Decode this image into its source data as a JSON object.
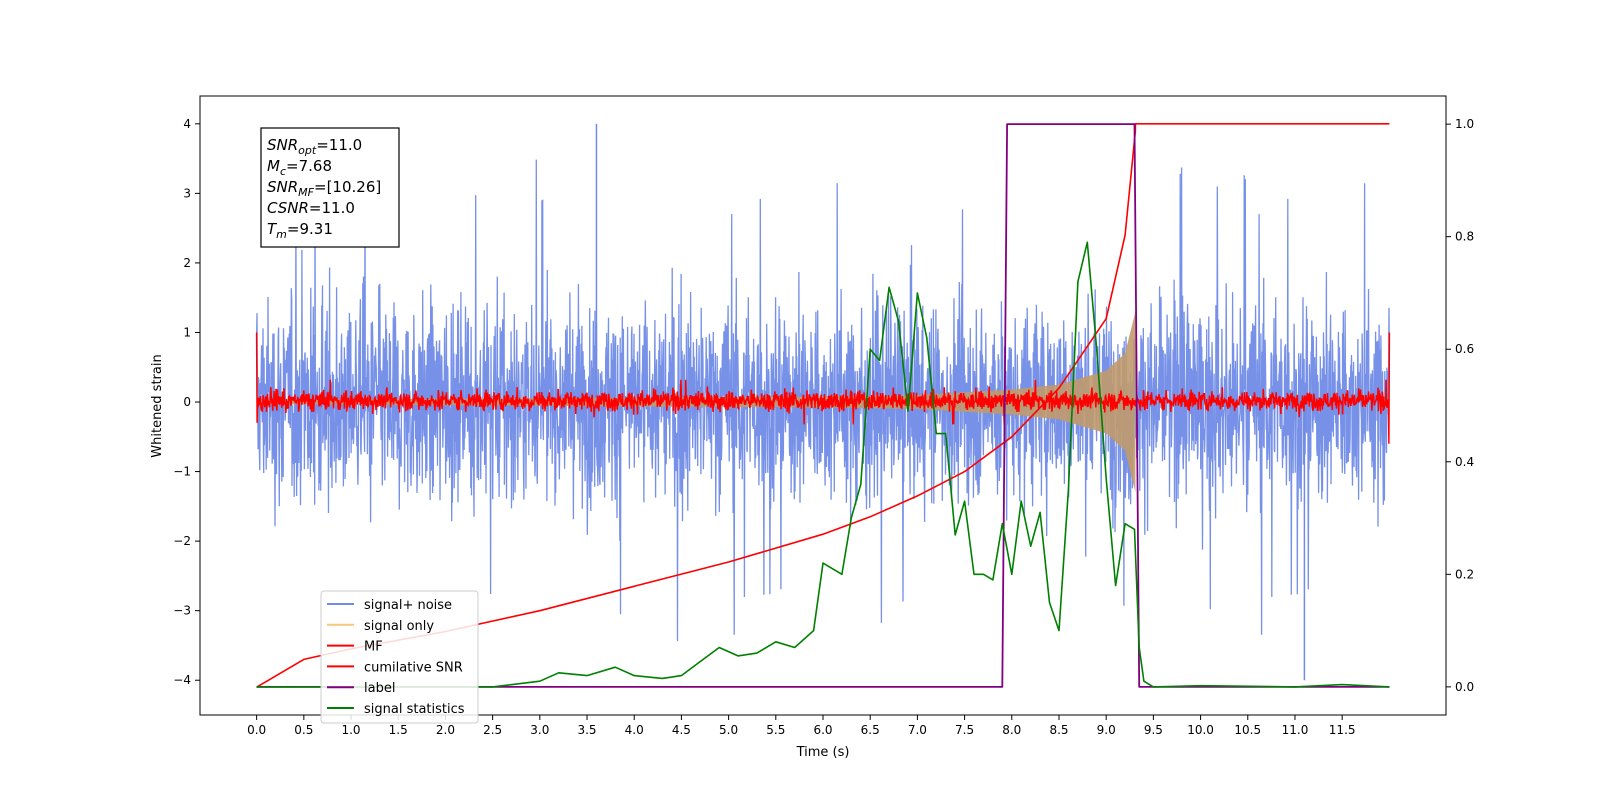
{
  "chart_data": {
    "type": "line",
    "title": "",
    "xlabel": "Time (s)",
    "ylabel": "Whitened strain",
    "xlim": [
      -0.6,
      12.6
    ],
    "ylim": [
      -4.5,
      4.4
    ],
    "y2lim": [
      -0.05,
      1.05
    ],
    "x_ticks": [
      0.0,
      0.5,
      1.0,
      1.5,
      2.0,
      2.5,
      3.0,
      3.5,
      4.0,
      4.5,
      5.0,
      5.5,
      6.0,
      6.5,
      7.0,
      7.5,
      8.0,
      8.5,
      9.0,
      9.5,
      10.0,
      10.5,
      11.0,
      11.5
    ],
    "x_tick_labels": [
      "0.0",
      "0.5",
      "1.0",
      "1.5",
      "2.0",
      "2.5",
      "3.0",
      "3.5",
      "4.0",
      "4.5",
      "5.0",
      "5.5",
      "6.0",
      "6.5",
      "7.0",
      "7.5",
      "8.0",
      "8.5",
      "9.0",
      "9.5",
      "10.0",
      "10.5",
      "11.0",
      "11.5"
    ],
    "y_ticks": [
      -4,
      -3,
      -2,
      -1,
      0,
      1,
      2,
      3,
      4
    ],
    "y_tick_labels": [
      "−4",
      "−3",
      "−2",
      "−1",
      "0",
      "1",
      "2",
      "3",
      "4"
    ],
    "y2_ticks": [
      0.0,
      0.2,
      0.4,
      0.6,
      0.8,
      1.0
    ],
    "y2_tick_labels": [
      "0.0",
      "0.2",
      "0.4",
      "0.6",
      "0.8",
      "1.0"
    ],
    "grid": false,
    "legend_position": "lower-left",
    "colors": {
      "noise": "#6f8be6",
      "signal": "#f5c87a",
      "signal_fill": "#c19a6b",
      "mf": "#ff0000",
      "csnr": "#ff0000",
      "label": "#800080",
      "stats": "#008000"
    },
    "series": [
      {
        "name": "signal+ noise",
        "key": "noise",
        "axis": "left",
        "amplitude": 1.6,
        "peak_extremes": [
          4.0,
          -4.0
        ]
      },
      {
        "name": "signal only",
        "key": "signal",
        "axis": "left",
        "envelope": [
          [
            0,
            0.03
          ],
          [
            6,
            0.08
          ],
          [
            7,
            0.1
          ],
          [
            8,
            0.18
          ],
          [
            8.5,
            0.25
          ],
          [
            9,
            0.45
          ],
          [
            9.2,
            0.7
          ],
          [
            9.31,
            1.3
          ]
        ]
      },
      {
        "name": "MF",
        "key": "mf",
        "axis": "left",
        "amplitude": 0.3,
        "edge_values": [
          1.0,
          -0.6
        ]
      },
      {
        "name": "cumilative SNR",
        "key": "csnr",
        "axis": "left",
        "points": [
          [
            0.0,
            -4.1
          ],
          [
            0.5,
            -3.7
          ],
          [
            1,
            -3.55
          ],
          [
            2,
            -3.3
          ],
          [
            3,
            -3.0
          ],
          [
            4,
            -2.65
          ],
          [
            5,
            -2.3
          ],
          [
            6,
            -1.9
          ],
          [
            6.5,
            -1.65
          ],
          [
            7,
            -1.35
          ],
          [
            7.5,
            -1.0
          ],
          [
            8,
            -0.5
          ],
          [
            8.5,
            0.2
          ],
          [
            9,
            1.2
          ],
          [
            9.2,
            2.4
          ],
          [
            9.31,
            3.9
          ],
          [
            9.31,
            4.0
          ],
          [
            12.0,
            4.0
          ]
        ]
      },
      {
        "name": "label",
        "key": "label",
        "axis": "right",
        "points": [
          [
            0.0,
            0.0
          ],
          [
            7.9,
            0.0
          ],
          [
            7.95,
            1.0
          ],
          [
            9.3,
            1.0
          ],
          [
            9.35,
            0.0
          ],
          [
            12.0,
            0.0
          ]
        ]
      },
      {
        "name": "signal statistics",
        "key": "stats",
        "axis": "right",
        "points": [
          [
            0.0,
            0.0
          ],
          [
            1.0,
            0.0
          ],
          [
            2.5,
            0.0
          ],
          [
            3.0,
            0.01
          ],
          [
            3.2,
            0.025
          ],
          [
            3.5,
            0.02
          ],
          [
            3.8,
            0.035
          ],
          [
            4.0,
            0.02
          ],
          [
            4.3,
            0.015
          ],
          [
            4.5,
            0.02
          ],
          [
            4.7,
            0.045
          ],
          [
            4.9,
            0.07
          ],
          [
            5.1,
            0.055
          ],
          [
            5.3,
            0.06
          ],
          [
            5.5,
            0.08
          ],
          [
            5.7,
            0.07
          ],
          [
            5.9,
            0.1
          ],
          [
            6.0,
            0.22
          ],
          [
            6.2,
            0.2
          ],
          [
            6.3,
            0.3
          ],
          [
            6.4,
            0.36
          ],
          [
            6.5,
            0.6
          ],
          [
            6.6,
            0.58
          ],
          [
            6.7,
            0.71
          ],
          [
            6.8,
            0.65
          ],
          [
            6.9,
            0.49
          ],
          [
            7.0,
            0.7
          ],
          [
            7.1,
            0.62
          ],
          [
            7.2,
            0.45
          ],
          [
            7.3,
            0.45
          ],
          [
            7.4,
            0.27
          ],
          [
            7.5,
            0.33
          ],
          [
            7.6,
            0.2
          ],
          [
            7.7,
            0.2
          ],
          [
            7.8,
            0.19
          ],
          [
            7.9,
            0.29
          ],
          [
            8.0,
            0.2
          ],
          [
            8.1,
            0.33
          ],
          [
            8.2,
            0.25
          ],
          [
            8.3,
            0.31
          ],
          [
            8.4,
            0.15
          ],
          [
            8.5,
            0.1
          ],
          [
            8.6,
            0.35
          ],
          [
            8.7,
            0.72
          ],
          [
            8.8,
            0.79
          ],
          [
            8.9,
            0.6
          ],
          [
            9.0,
            0.37
          ],
          [
            9.1,
            0.18
          ],
          [
            9.2,
            0.29
          ],
          [
            9.3,
            0.28
          ],
          [
            9.35,
            0.07
          ],
          [
            9.4,
            0.01
          ],
          [
            9.5,
            0.0
          ],
          [
            10.0,
            0.002
          ],
          [
            11.0,
            0.0
          ],
          [
            11.5,
            0.004
          ],
          [
            12.0,
            0.0
          ]
        ]
      }
    ],
    "x_extent": [
      0.0,
      12.0
    ],
    "annotation": {
      "lines": [
        {
          "sym": "SNR",
          "sub": "opt",
          "val": "=11.0"
        },
        {
          "sym": "M",
          "sub": "c",
          "val": "=7.68"
        },
        {
          "sym": "SNR",
          "sub": "MF",
          "val": "=[10.26]"
        },
        {
          "sym": "CSNR",
          "sub": "",
          "val": "=11.0"
        },
        {
          "sym": "T",
          "sub": "m",
          "val": "=9.31"
        }
      ]
    }
  }
}
